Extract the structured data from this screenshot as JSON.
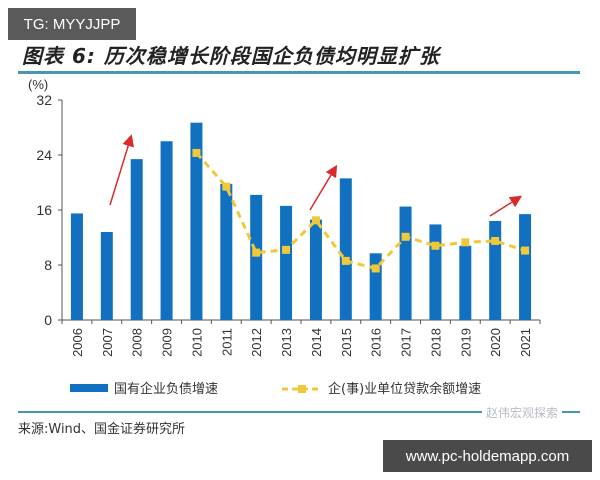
{
  "overlay": {
    "tg_badge": "TG: MYYJJPP",
    "site_badge": "www.pc-holdemapp.com",
    "watermark": "赵伟宏观探索"
  },
  "figure": {
    "title": "图表 6:  历次稳增长阶段国企负债均明显扩张",
    "unit": "(%)",
    "source": "来源:Wind、国金证券研究所"
  },
  "colors": {
    "bar": "#1170c0",
    "line": "#f0c93a",
    "arrow": "#d92b2b",
    "rule": "#4a96b0"
  },
  "legend": {
    "bar_label": "国有企业负债增速",
    "line_label": "企(事)业单位贷款余额增速"
  },
  "chart_data": {
    "type": "bar",
    "title": "图表 6: 历次稳增长阶段国企负债均明显扩张",
    "xlabel": "",
    "ylabel": "(%)",
    "ylim": [
      0,
      32
    ],
    "yticks": [
      0,
      8,
      16,
      24,
      32
    ],
    "grid": false,
    "legend_position": "bottom",
    "categories": [
      "2006",
      "2007",
      "2008",
      "2009",
      "2010",
      "2011",
      "2012",
      "2013",
      "2014",
      "2015",
      "2016",
      "2017",
      "2018",
      "2019",
      "2020",
      "2021"
    ],
    "series": [
      {
        "name": "国有企业负债增速",
        "type": "bar",
        "values": [
          15.5,
          12.8,
          23.4,
          26.0,
          28.7,
          19.8,
          18.2,
          16.6,
          14.6,
          20.6,
          9.7,
          16.5,
          13.9,
          10.8,
          14.4,
          15.4
        ]
      },
      {
        "name": "企(事)业单位贷款余额增速",
        "type": "line",
        "start_index": 4,
        "values": [
          null,
          null,
          null,
          null,
          24.3,
          19.4,
          9.8,
          10.2,
          14.5,
          8.6,
          7.5,
          12.1,
          10.8,
          11.3,
          11.5,
          10.1
        ]
      }
    ],
    "annotations": [
      {
        "type": "arrow",
        "from": "2007-2008",
        "direction": "up",
        "color": "red"
      },
      {
        "type": "arrow",
        "from": "2014-2015",
        "direction": "up",
        "color": "red"
      },
      {
        "type": "arrow",
        "from": "2020-2021",
        "direction": "up",
        "color": "red"
      }
    ]
  }
}
